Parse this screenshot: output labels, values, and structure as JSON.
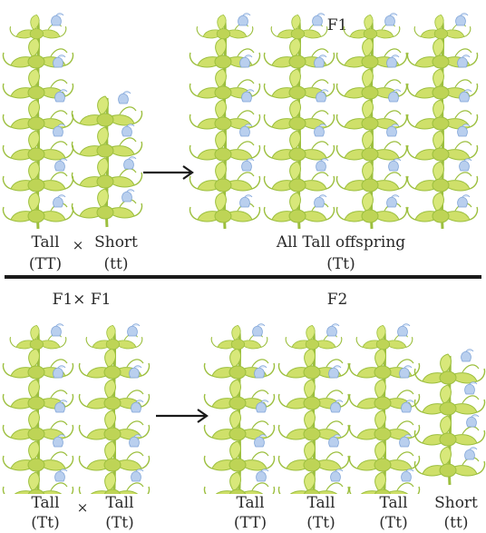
{
  "top": {
    "heading": "F1",
    "parent_left": {
      "label": "Tall",
      "genotype": "(TT)"
    },
    "parent_right": {
      "label": "Short",
      "genotype": "(tt)"
    },
    "cross_symbol": "×",
    "offspring": {
      "label": "All Tall offspring",
      "genotype": "(Tt)"
    }
  },
  "bottom": {
    "heading_left": "F1× F1",
    "heading_right": "F2",
    "parent_left": {
      "label": "Tall",
      "genotype": "(Tt)"
    },
    "parent_right": {
      "label": "Tall",
      "genotype": "(Tt)"
    },
    "cross_symbol": "×",
    "offspring": [
      {
        "label": "Tall",
        "genotype": "(TT)"
      },
      {
        "label": "Tall",
        "genotype": "(Tt)"
      },
      {
        "label": "Tall",
        "genotype": "(Tt)"
      },
      {
        "label": "Short",
        "genotype": "(tt)"
      }
    ]
  },
  "colors": {
    "stem": "#9cbf3e",
    "leaf": "#cfe06a",
    "leaf_dark": "#a9c64a",
    "flower": "#b9cfee",
    "flower_dark": "#7fa4d8",
    "line": "#1a1a1a"
  }
}
